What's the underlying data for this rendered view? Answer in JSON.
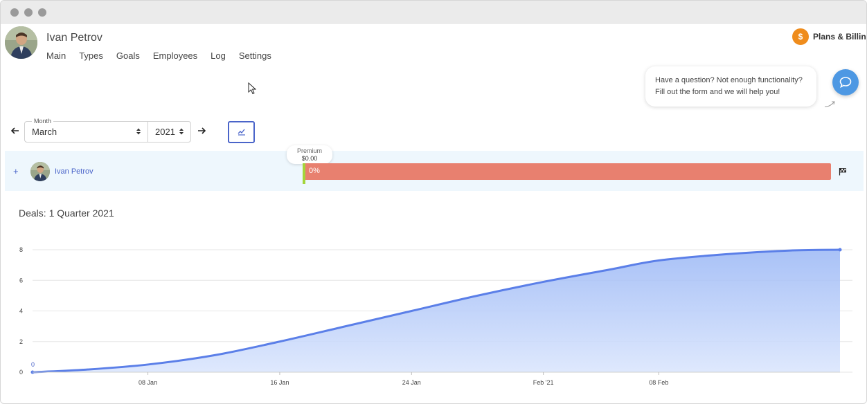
{
  "user": {
    "name": "Ivan Petrov"
  },
  "nav": {
    "items": [
      "Main",
      "Types",
      "Goals",
      "Employees",
      "Log",
      "Settings"
    ]
  },
  "header": {
    "plans_label": "Plans & Billing",
    "plans_icon": "dollar-coin-icon",
    "plans_symbol": "$",
    "accent": "#ef8c1c"
  },
  "help": {
    "line1": "Have a question? Not enough functionality?",
    "line2": "Fill out the form and we will help you!",
    "icon": "chat-bubble-icon"
  },
  "filters": {
    "month_label": "Month",
    "month_value": "March",
    "year_value": "2021"
  },
  "employee_row": {
    "name": "Ivan Petrov",
    "plan_name": "Premium",
    "plan_amount": "$0.00",
    "progress_text": "0%",
    "progress": 0,
    "bar_color": "#e8806f",
    "marker_color": "#a3d53a"
  },
  "deals": {
    "title": "Deals: 1 Quarter 2021"
  },
  "chart_data": {
    "type": "area",
    "title": "Deals: 1 Quarter 2021",
    "x": [
      "2021-01-01",
      "2021-01-04",
      "2021-01-08",
      "2021-01-12",
      "2021-01-16",
      "2021-01-20",
      "2021-01-24",
      "2021-01-28",
      "2021-02-01",
      "2021-02-05",
      "2021-02-08",
      "2021-02-12",
      "2021-02-16",
      "2021-02-19"
    ],
    "series": [
      {
        "values": [
          0,
          0.15,
          0.5,
          1.1,
          2.0,
          3.0,
          4.0,
          5.0,
          5.9,
          6.7,
          7.3,
          7.7,
          7.95,
          8.0
        ],
        "color": "#5b7fe8"
      }
    ],
    "x_tick_labels": [
      "08 Jan",
      "16 Jan",
      "24 Jan",
      "Feb '21",
      "08 Feb"
    ],
    "x_tick_dates": [
      "2021-01-08",
      "2021-01-16",
      "2021-01-24",
      "2021-02-01",
      "2021-02-08"
    ],
    "y_ticks": [
      0,
      2,
      4,
      6,
      8
    ],
    "ylim": [
      0,
      8
    ],
    "first_point_label": "0",
    "grid": true
  }
}
